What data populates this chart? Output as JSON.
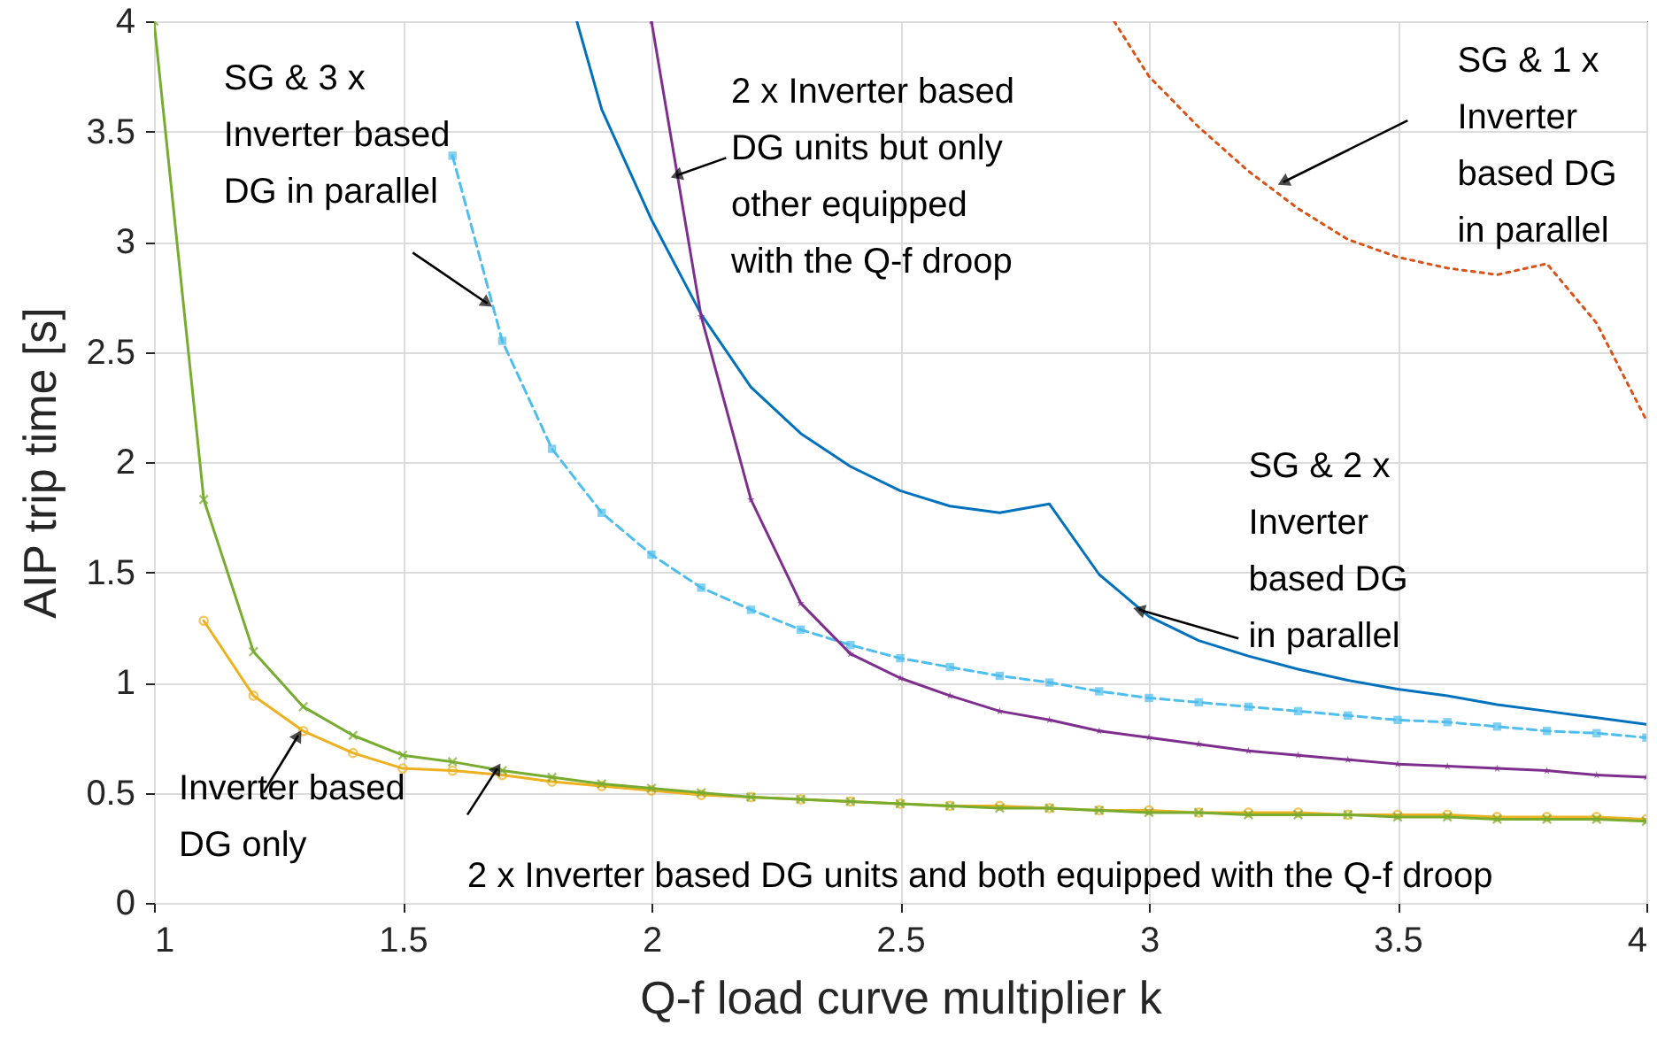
{
  "chart_data": {
    "type": "line",
    "xlabel": "Q-f load curve multiplier k",
    "ylabel": "AIP trip time [s]",
    "xlim": [
      1,
      4
    ],
    "xticks": [
      1,
      1.5,
      2,
      2.5,
      3,
      3.5,
      4
    ],
    "ylim": [
      0,
      4
    ],
    "yticks": [
      0,
      0.5,
      1,
      1.5,
      2,
      2.5,
      3,
      3.5,
      4
    ],
    "grid": true,
    "series": [
      {
        "name": "Inverter based\nDG only",
        "color": "#edb120",
        "marker": "circle",
        "line_style": "solid",
        "x": [
          1.1,
          1.2,
          1.3,
          1.4,
          1.5,
          1.6,
          1.7,
          1.8,
          1.9,
          2,
          2.1,
          2.2,
          2.3,
          2.4,
          2.5,
          2.6,
          2.7,
          2.8,
          2.9,
          3,
          3.1,
          3.2,
          3.3,
          3.4,
          3.5,
          3.6,
          3.7,
          3.8,
          3.9,
          4
        ],
        "values": [
          1.28,
          0.94,
          0.78,
          0.68,
          0.61,
          0.6,
          0.58,
          0.55,
          0.53,
          0.51,
          0.49,
          0.48,
          0.47,
          0.46,
          0.45,
          0.44,
          0.44,
          0.43,
          0.42,
          0.42,
          0.41,
          0.41,
          0.41,
          0.4,
          0.4,
          0.4,
          0.39,
          0.39,
          0.39,
          0.38
        ]
      },
      {
        "name": "2 x Inverter based DG units and both equipped with the Q-f droop",
        "color": "#77ac30",
        "marker": "cross",
        "line_style": "solid",
        "x": [
          1,
          1.1,
          1.2,
          1.3,
          1.4,
          1.5,
          1.6,
          1.7,
          1.8,
          1.9,
          2,
          2.1,
          2.2,
          2.3,
          2.4,
          2.5,
          2.6,
          2.7,
          2.8,
          2.9,
          3,
          3.1,
          3.2,
          3.3,
          3.4,
          3.5,
          3.6,
          3.7,
          3.8,
          3.9,
          4
        ],
        "values": [
          4,
          1.83,
          1.14,
          0.89,
          0.76,
          0.67,
          0.64,
          0.6,
          0.57,
          0.54,
          0.52,
          0.5,
          0.48,
          0.47,
          0.46,
          0.45,
          0.44,
          0.43,
          0.43,
          0.42,
          0.41,
          0.41,
          0.4,
          0.4,
          0.4,
          0.39,
          0.39,
          0.38,
          0.38,
          0.38,
          0.37
        ]
      },
      {
        "name": "SG & 3 x\nInverter based\nDG in parallel",
        "color": "#4dbeee",
        "marker": "square",
        "line_style": "dashed",
        "x": [
          1.6,
          1.7,
          1.8,
          1.9,
          2,
          2.1,
          2.2,
          2.3,
          2.4,
          2.5,
          2.6,
          2.7,
          2.8,
          2.9,
          3,
          3.1,
          3.2,
          3.3,
          3.4,
          3.5,
          3.6,
          3.7,
          3.8,
          3.9,
          4
        ],
        "values": [
          3.39,
          2.55,
          2.06,
          1.77,
          1.58,
          1.43,
          1.33,
          1.24,
          1.17,
          1.11,
          1.07,
          1.03,
          1,
          0.96,
          0.93,
          0.91,
          0.89,
          0.87,
          0.85,
          0.83,
          0.82,
          0.8,
          0.78,
          0.77,
          0.75
        ]
      },
      {
        "name": "SG & 2 x\nInverter\nbased DG\nin parallel",
        "color": "#0072bd",
        "marker": "none",
        "line_style": "solid",
        "x": [
          1.85,
          1.9,
          2,
          2.1,
          2.2,
          2.3,
          2.4,
          2.5,
          2.6,
          2.7,
          2.8,
          2.9,
          3,
          3.1,
          3.2,
          3.3,
          3.4,
          3.5,
          3.6,
          3.7,
          3.8,
          3.9,
          4
        ],
        "values": [
          4,
          3.6,
          3.1,
          2.67,
          2.34,
          2.13,
          1.98,
          1.87,
          1.8,
          1.77,
          1.81,
          1.49,
          1.3,
          1.19,
          1.12,
          1.06,
          1.01,
          0.97,
          0.94,
          0.9,
          0.87,
          0.84,
          0.81
        ]
      },
      {
        "name": "2 x Inverter based\nDG units but only\nother equipped\nwith the Q-f droop",
        "color": "#7e2f8e",
        "marker": "star",
        "line_style": "solid",
        "x": [
          2,
          2.1,
          2.2,
          2.3,
          2.4,
          2.5,
          2.6,
          2.7,
          2.8,
          2.9,
          3,
          3.1,
          3.2,
          3.3,
          3.4,
          3.5,
          3.6,
          3.7,
          3.8,
          3.9,
          4
        ],
        "values": [
          4,
          2.66,
          1.83,
          1.36,
          1.13,
          1.02,
          0.94,
          0.87,
          0.83,
          0.78,
          0.75,
          0.72,
          0.69,
          0.67,
          0.65,
          0.63,
          0.62,
          0.61,
          0.6,
          0.58,
          0.57
        ]
      },
      {
        "name": "SG & 1 x\nInverter\nbased DG\nin parallel",
        "color": "#d95319",
        "marker": "none",
        "line_style": "dotted",
        "x": [
          2.93,
          3,
          3.1,
          3.2,
          3.3,
          3.4,
          3.5,
          3.6,
          3.7,
          3.8,
          3.9,
          4
        ],
        "values": [
          4,
          3.75,
          3.52,
          3.32,
          3.15,
          3.01,
          2.93,
          2.88,
          2.85,
          2.9,
          2.63,
          2.19
        ]
      }
    ]
  }
}
